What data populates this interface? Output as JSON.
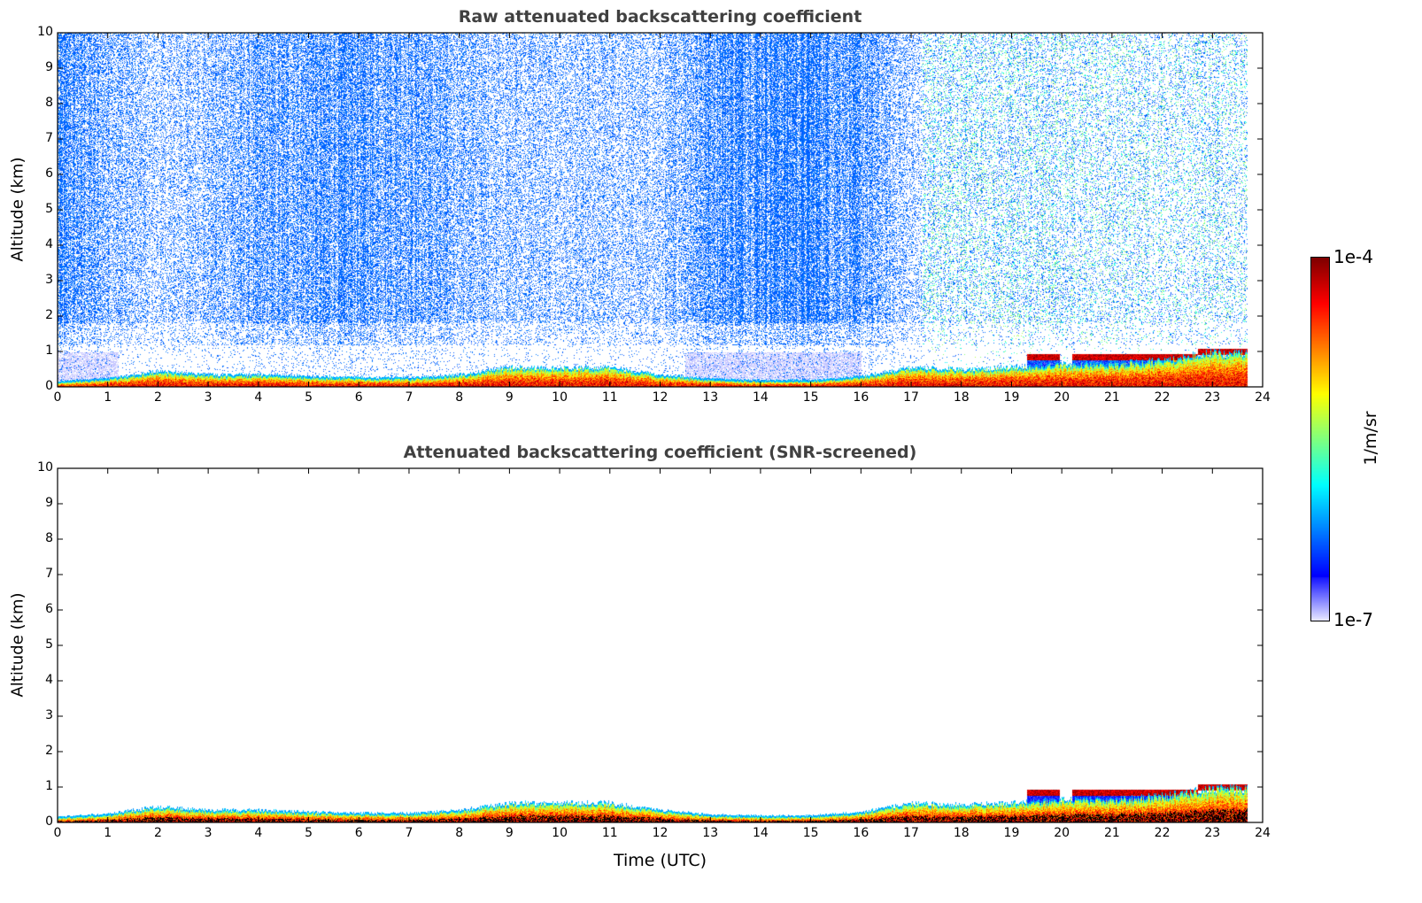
{
  "chart_data": [
    {
      "type": "heatmap",
      "title": "Raw attenuated backscattering coefficient",
      "xlabel": "",
      "ylabel": "Altitude (km)",
      "xlim": [
        0,
        24
      ],
      "ylim": [
        0,
        10
      ],
      "xticks": [
        0,
        1,
        2,
        3,
        4,
        5,
        6,
        7,
        8,
        9,
        10,
        11,
        12,
        13,
        14,
        15,
        16,
        17,
        18,
        19,
        20,
        21,
        22,
        23,
        24
      ],
      "yticks": [
        0,
        1,
        2,
        3,
        4,
        5,
        6,
        7,
        8,
        9,
        10
      ],
      "data_end_hour": 23.7,
      "hours": [
        0,
        1,
        2,
        3,
        4,
        5,
        6,
        7,
        8,
        9,
        10,
        11,
        12,
        13,
        14,
        15,
        16,
        17,
        18,
        19,
        20,
        21,
        22,
        23
      ],
      "boundary_layer_top_km": [
        0.12,
        0.2,
        0.4,
        0.3,
        0.3,
        0.25,
        0.22,
        0.22,
        0.3,
        0.5,
        0.5,
        0.5,
        0.3,
        0.18,
        0.15,
        0.15,
        0.25,
        0.5,
        0.45,
        0.5,
        0.6,
        0.6,
        0.7,
        0.9
      ],
      "cloud_layer_km": {
        "start_hour": 19.3,
        "end_hour": 23.7,
        "height": 0.85
      },
      "upper_noise_density": [
        0.8,
        0.55,
        0.3,
        0.45,
        0.6,
        0.7,
        0.75,
        0.7,
        0.5,
        0.4,
        0.35,
        0.35,
        0.35,
        0.8,
        0.9,
        0.9,
        0.7,
        0.3,
        0.3,
        0.3,
        0.3,
        0.25,
        0.25,
        0.25
      ]
    },
    {
      "type": "heatmap",
      "title": "Attenuated backscattering coefficient (SNR-screened)",
      "xlabel": "Time (UTC)",
      "ylabel": "Altitude (km)",
      "xlim": [
        0,
        24
      ],
      "ylim": [
        0,
        10
      ],
      "xticks": [
        0,
        1,
        2,
        3,
        4,
        5,
        6,
        7,
        8,
        9,
        10,
        11,
        12,
        13,
        14,
        15,
        16,
        17,
        18,
        19,
        20,
        21,
        22,
        23,
        24
      ],
      "yticks": [
        0,
        1,
        2,
        3,
        4,
        5,
        6,
        7,
        8,
        9,
        10
      ]
    }
  ],
  "colorbar": {
    "label": "1/m/sr",
    "max_label": "1e-4",
    "min_label": "1e-7",
    "range": [
      1e-07,
      0.0001
    ],
    "scale": "log",
    "colormap": "jet"
  }
}
